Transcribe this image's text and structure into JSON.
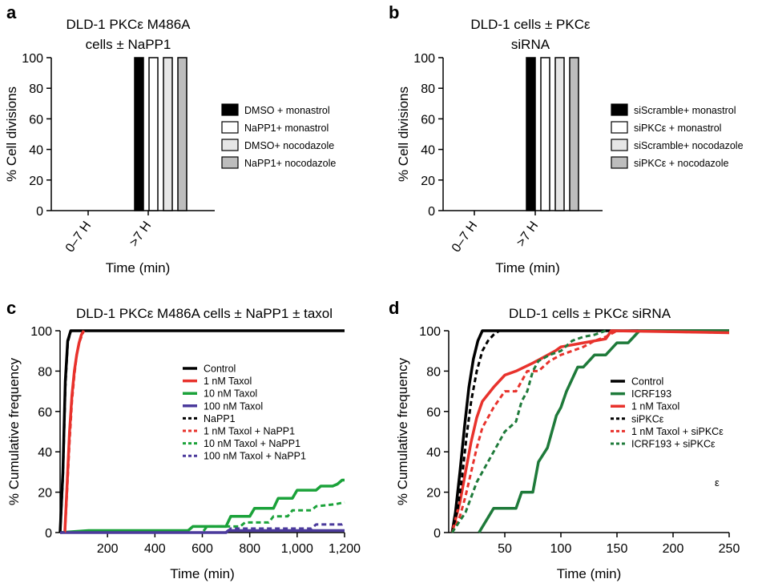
{
  "chart_data": [
    {
      "panel": "a",
      "type": "bar",
      "title": [
        "DLD-1 PKCε M486A",
        "cells ± NaPP1"
      ],
      "xlabel": "Time (min)",
      "ylabel": "% Cell divisions",
      "ylim": [
        0,
        100
      ],
      "yticks": [
        "0",
        "20",
        "40",
        "60",
        "80",
        "100"
      ],
      "categories": [
        "0–7 H",
        ">7 H"
      ],
      "series": [
        {
          "name": "DMSO + monastrol",
          "color": "#000000",
          "values": [
            0,
            100
          ]
        },
        {
          "name": "NaPP1+ monastrol",
          "color": "#ffffff",
          "values": [
            0,
            100
          ]
        },
        {
          "name": "DMSO+ nocodazole",
          "color": "#e6e6e6",
          "values": [
            0,
            100
          ]
        },
        {
          "name": "NaPP1+ nocodazole",
          "color": "#bdbdbd",
          "values": [
            0,
            100
          ]
        }
      ],
      "legend_position": "right"
    },
    {
      "panel": "b",
      "type": "bar",
      "title": [
        "DLD-1 cells ± PKCε",
        "siRNA"
      ],
      "xlabel": "Time (min)",
      "ylabel": "% Cell divisions",
      "ylim": [
        0,
        100
      ],
      "yticks": [
        "0",
        "20",
        "40",
        "60",
        "80",
        "100"
      ],
      "categories": [
        "0–7 H",
        ">7 H"
      ],
      "series": [
        {
          "name": "siScramble+ monastrol",
          "color": "#000000",
          "values": [
            0,
            100
          ]
        },
        {
          "name": "siPKCε + monastrol",
          "color": "#ffffff",
          "values": [
            0,
            100
          ]
        },
        {
          "name": "siScramble+ nocodazole",
          "color": "#e6e6e6",
          "values": [
            0,
            100
          ]
        },
        {
          "name": "siPKCε + nocodazole",
          "color": "#bdbdbd",
          "values": [
            0,
            100
          ]
        }
      ],
      "legend_position": "right"
    },
    {
      "panel": "c",
      "type": "line",
      "title": "DLD-1 PKCε M486A cells ± NaPP1 ± taxol",
      "xlabel": "Time (min)",
      "ylabel": "% Cumulative frequency",
      "xlim": [
        0,
        1200
      ],
      "ylim": [
        0,
        100
      ],
      "xticks": [
        200,
        400,
        600,
        800,
        1000,
        1200
      ],
      "xtick_labels": [
        "200",
        "400",
        "600",
        "800",
        "1,000",
        "1,200"
      ],
      "yticks": [
        "0",
        "20",
        "40",
        "60",
        "80",
        "100"
      ],
      "legend_position": "center-right",
      "series": [
        {
          "name": "Control",
          "color": "#000000",
          "dash": false,
          "x": [
            0,
            12,
            22,
            32,
            45,
            1200
          ],
          "y": [
            0,
            30,
            75,
            95,
            100,
            100
          ]
        },
        {
          "name": "1 nM Taxol",
          "color": "#e8322c",
          "dash": false,
          "x": [
            20,
            30,
            40,
            50,
            60,
            70,
            80,
            90,
            100
          ],
          "y": [
            0,
            25,
            50,
            68,
            80,
            88,
            94,
            98,
            100
          ]
        },
        {
          "name": "10 nM Taxol",
          "color": "#1ba23a",
          "dash": false,
          "x": [
            0,
            120,
            540,
            560,
            700,
            720,
            800,
            820,
            900,
            920,
            980,
            1000,
            1080,
            1100,
            1150,
            1170,
            1190,
            1200
          ],
          "y": [
            0,
            1,
            1,
            3,
            3,
            8,
            8,
            12,
            12,
            17,
            17,
            21,
            21,
            23,
            23,
            24,
            26,
            26
          ]
        },
        {
          "name": "100 nM Taxol",
          "color": "#4b3a9c",
          "dash": false,
          "x": [
            0,
            700,
            710,
            1200
          ],
          "y": [
            0,
            0,
            1,
            1
          ]
        },
        {
          "name": "NaPP1",
          "color": "#000000",
          "dash": true,
          "x": [
            0,
            12,
            22,
            32,
            45,
            1200
          ],
          "y": [
            0,
            28,
            72,
            94,
            100,
            100
          ]
        },
        {
          "name": "1 nM Taxol + NaPP1",
          "color": "#e8322c",
          "dash": true,
          "x": [
            20,
            30,
            40,
            50,
            60,
            70,
            80,
            90,
            100
          ],
          "y": [
            0,
            22,
            45,
            65,
            78,
            88,
            94,
            97,
            100
          ]
        },
        {
          "name": "10 nM Taxol + NaPP1",
          "color": "#1ba23a",
          "dash": true,
          "x": [
            0,
            600,
            620,
            760,
            780,
            880,
            900,
            960,
            980,
            1060,
            1080,
            1160,
            1200
          ],
          "y": [
            0,
            0,
            3,
            3,
            5,
            5,
            8,
            8,
            11,
            11,
            13,
            14,
            15
          ]
        },
        {
          "name": "100 nM Taxol + NaPP1",
          "color": "#4b3a9c",
          "dash": true,
          "x": [
            0,
            700,
            720,
            1060,
            1080,
            1190,
            1200
          ],
          "y": [
            0,
            0,
            2,
            2,
            4,
            4,
            5
          ]
        }
      ]
    },
    {
      "panel": "d",
      "type": "line",
      "title": "DLD-1 cells ±  PKCε siRNA",
      "xlabel": "Time (min)",
      "ylabel": "% Cumulative frequency",
      "xlim": [
        0,
        250
      ],
      "ylim": [
        0,
        100
      ],
      "xticks": [
        50,
        100,
        150,
        200,
        250
      ],
      "xtick_labels": [
        "50",
        "100",
        "150",
        "200",
        "250"
      ],
      "yticks": [
        "0",
        "20",
        "40",
        "60",
        "80",
        "100"
      ],
      "legend_position": "center-right",
      "note": "ε",
      "series": [
        {
          "name": "Control",
          "color": "#000000",
          "dash": false,
          "x": [
            3,
            6,
            10,
            14,
            18,
            22,
            26,
            30,
            250
          ],
          "y": [
            0,
            10,
            30,
            52,
            72,
            86,
            95,
            100,
            100
          ]
        },
        {
          "name": "ICRF193",
          "color": "#1e7a3a",
          "dash": false,
          "x": [
            27,
            40,
            60,
            65,
            75,
            80,
            88,
            92,
            96,
            100,
            105,
            110,
            115,
            120,
            130,
            140,
            150,
            160,
            170,
            175,
            185,
            250
          ],
          "y": [
            0,
            12,
            12,
            20,
            20,
            35,
            42,
            50,
            58,
            62,
            70,
            76,
            82,
            82,
            88,
            88,
            94,
            94,
            100,
            100,
            100,
            100
          ]
        },
        {
          "name": "1 nM Taxol",
          "color": "#e8322c",
          "dash": false,
          "x": [
            3,
            10,
            15,
            20,
            25,
            30,
            40,
            50,
            60,
            75,
            85,
            95,
            100,
            120,
            130,
            140,
            145,
            250
          ],
          "y": [
            0,
            15,
            30,
            45,
            57,
            65,
            72,
            78,
            80,
            84,
            87,
            90,
            92,
            94,
            95,
            96,
            100,
            99
          ]
        },
        {
          "name": "siPKCε",
          "color": "#000000",
          "dash": true,
          "x": [
            3,
            8,
            12,
            16,
            20,
            25,
            30,
            35,
            40,
            45
          ],
          "y": [
            0,
            12,
            28,
            48,
            65,
            80,
            90,
            95,
            98,
            100
          ]
        },
        {
          "name": "1 nM Taxol + siPKCε",
          "color": "#e8322c",
          "dash": true,
          "x": [
            3,
            10,
            15,
            20,
            25,
            30,
            40,
            50,
            60,
            70,
            80,
            90,
            100,
            110,
            120,
            130,
            140,
            150,
            250
          ],
          "y": [
            0,
            8,
            18,
            30,
            42,
            52,
            62,
            70,
            70,
            80,
            80,
            85,
            88,
            90,
            92,
            95,
            97,
            100,
            99
          ]
        },
        {
          "name": "ICRF193 + siPKCε",
          "color": "#1e7a3a",
          "dash": true,
          "x": [
            3,
            15,
            25,
            35,
            45,
            50,
            60,
            65,
            70,
            75,
            80,
            90,
            100,
            110,
            120,
            130,
            140
          ],
          "y": [
            0,
            10,
            25,
            35,
            45,
            50,
            55,
            65,
            70,
            80,
            85,
            88,
            90,
            95,
            97,
            98,
            100
          ]
        }
      ]
    }
  ]
}
